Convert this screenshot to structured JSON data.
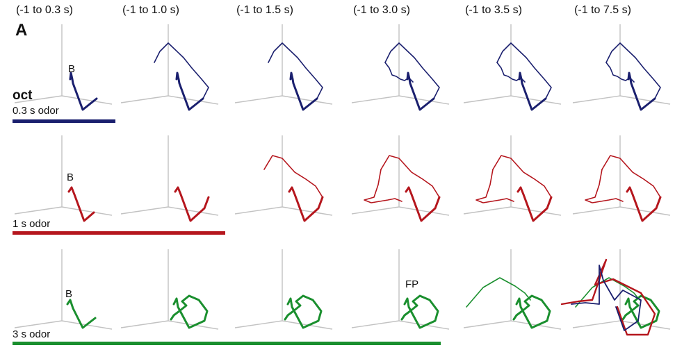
{
  "panel_label": "A",
  "odor_name": "oct",
  "time_windows": [
    "(-1 to 0.3 s)",
    "(-1 to 1.0 s)",
    "(-1 to 1.5 s)",
    "(-1 to 3.0 s)",
    "(-1 to 3.5 s)",
    "(-1 to 7.5 s)"
  ],
  "rows": [
    {
      "odor_label": "0.3 s odor",
      "color": "#1a1f6e"
    },
    {
      "odor_label": "1 s odor",
      "color": "#b5161d"
    },
    {
      "odor_label": "3 s odor",
      "color": "#1a8f2e"
    }
  ],
  "markers": {
    "baseline": "B",
    "fixed_point": "FP"
  }
}
